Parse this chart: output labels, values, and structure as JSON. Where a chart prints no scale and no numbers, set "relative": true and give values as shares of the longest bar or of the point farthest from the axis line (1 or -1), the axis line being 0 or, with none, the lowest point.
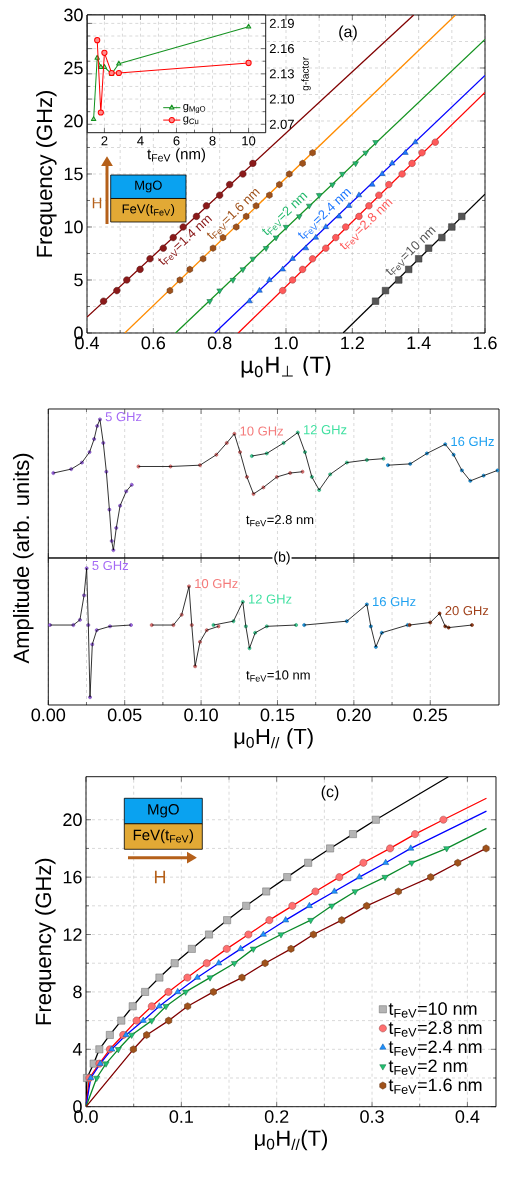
{
  "chart_data": [
    {
      "type": "scatter",
      "xlabel": "μ$_{0}$H$_{⊥}$ (T)",
      "ylabel": "Frequency (GHz)",
      "xlim": [
        0.4,
        1.6
      ],
      "ylim": [
        0,
        30
      ],
      "xticks": [
        0.4,
        0.6,
        0.8,
        {
          "value": 1.0,
          "label": "1.0"
        },
        1.2,
        1.4,
        1.6
      ],
      "yticks": [
        0,
        5,
        10,
        15,
        20,
        25,
        30
      ],
      "grid": true,
      "annotations": [
        "(a)",
        "MgO",
        "FeV(t$_{FeV}$)",
        "H"
      ],
      "series": [
        {
          "type": "line",
          "color": "#800000",
          "x": [
            0.4,
            1.385
          ],
          "values": [
            1.5,
            30
          ]
        },
        {
          "type": "line",
          "color": "#ff8c00",
          "x": [
            0.514,
            1.511
          ],
          "values": [
            0,
            30
          ]
        },
        {
          "type": "line",
          "color": "#13921f",
          "x": [
            0.667,
            1.6
          ],
          "values": [
            0,
            27.7
          ]
        },
        {
          "type": "line",
          "color": "#0000ff",
          "x": [
            0.785,
            1.6
          ],
          "values": [
            0,
            24.3
          ]
        },
        {
          "type": "line",
          "color": "#ff0000",
          "x": [
            0.856,
            1.6
          ],
          "values": [
            0,
            22.7
          ]
        },
        {
          "type": "line",
          "color": "#000000",
          "x": [
            1.172,
            1.6
          ],
          "values": [
            0,
            13.1
          ]
        },
        {
          "name": "t$_{FeV}$=1.4 nm",
          "color": "#8b1a1a",
          "marker": "circle",
          "x": [
            0.45,
            0.49,
            0.52,
            0.56,
            0.59,
            0.63,
            0.66,
            0.69,
            0.73,
            0.76,
            0.8,
            0.83,
            0.87,
            0.9
          ],
          "values": [
            3,
            4,
            5,
            6,
            7,
            8,
            9,
            10,
            11,
            12,
            13,
            14,
            15,
            16
          ]
        },
        {
          "name": "t$_{FeV}$=1.6 nm",
          "color": "#a0521b",
          "x": [
            0.65,
            0.68,
            0.71,
            0.75,
            0.78,
            0.81,
            0.85,
            0.88,
            0.91,
            0.95,
            0.98,
            1.01,
            1.05,
            1.08
          ],
          "values": [
            4,
            5,
            6,
            7,
            8,
            9,
            10,
            11,
            12,
            13,
            14,
            15,
            16,
            17
          ]
        },
        {
          "name": "t$_{FeV}$=2 nm",
          "color": "#22b86b",
          "marker": "triangle-down",
          "x": [
            0.77,
            0.8,
            0.84,
            0.87,
            0.9,
            0.94,
            0.97,
            1.0,
            1.04,
            1.07,
            1.1,
            1.14,
            1.17,
            1.21,
            1.24,
            1.27
          ],
          "values": [
            3,
            4,
            5,
            6,
            7,
            8,
            9,
            10,
            11,
            12,
            13,
            14,
            15,
            16,
            17,
            18
          ]
        },
        {
          "name": "t$_{FeV}$=2.4 nm",
          "color": "#1e78ff",
          "marker": "triangle",
          "x": [
            0.89,
            0.92,
            0.95,
            0.99,
            1.02,
            1.06,
            1.09,
            1.12,
            1.16,
            1.19,
            1.22,
            1.26,
            1.29,
            1.32,
            1.36,
            1.39
          ],
          "values": [
            3,
            4,
            5,
            6,
            7,
            8,
            9,
            10,
            11,
            12,
            13,
            14,
            15,
            16,
            17,
            18
          ]
        },
        {
          "name": "t$_{FeV}$=2.8 nm",
          "color": "#ff5a5a",
          "marker": "circle",
          "x": [
            0.99,
            1.02,
            1.05,
            1.08,
            1.12,
            1.15,
            1.18,
            1.22,
            1.25,
            1.28,
            1.31,
            1.35,
            1.38,
            1.41,
            1.45
          ],
          "values": [
            4,
            5,
            6,
            7,
            8,
            9,
            10,
            11,
            12,
            13,
            14,
            15,
            16,
            17,
            18
          ]
        },
        {
          "name": "t$_{FeV}$=10 nm",
          "color": "#555555",
          "marker": "square",
          "x": [
            1.27,
            1.3,
            1.34,
            1.37,
            1.4,
            1.43,
            1.47,
            1.5,
            1.53
          ],
          "values": [
            3,
            4,
            5,
            6,
            7,
            8,
            9,
            10,
            11
          ]
        }
      ]
    },
    {
      "type": "line",
      "xlabel": "t$_{FeV}$ (nm)",
      "ylabel": "g-factor",
      "xlim": [
        1.05,
        10.95
      ],
      "ylim": [
        2.06,
        2.2
      ],
      "xticks": [
        2,
        4,
        6,
        8,
        10
      ],
      "yticks": [
        2.07,
        {
          "value": 2.1,
          "label": "2.10"
        },
        2.13,
        2.16,
        2.19
      ],
      "grid": true,
      "legend": "bottom",
      "series": [
        {
          "name": "g$_{MgO}$",
          "color": "#13921f",
          "marker": "triangle",
          "x": [
            1.4,
            1.6,
            1.8,
            2,
            2.4,
            2.8,
            10
          ],
          "values": [
            2.076,
            2.149,
            2.138,
            2.138,
            2.13,
            2.142,
            2.186
          ]
        },
        {
          "name": "g$_{Cu}$",
          "color": "#ff0000",
          "marker": "circle",
          "x": [
            1.6,
            1.8,
            2,
            2.4,
            2.8,
            10
          ],
          "values": [
            2.17,
            2.084,
            2.155,
            2.131,
            2.131,
            2.143
          ]
        }
      ]
    },
    {
      "type": "scatter",
      "relative": true,
      "xlim": [
        0,
        0.295
      ],
      "xticks": [
        0,
        0.05,
        0.1,
        0.15,
        0.2,
        0.25
      ],
      "tick_labels": false,
      "grid": "x",
      "ylabel": "Amplitude (arb. units)",
      "annotations": [
        "t$_{FeV}$=2.8 nm"
      ],
      "series": [
        {
          "name": "5 GHz",
          "color": "#a469f5",
          "x": [
            0.0033,
            0.015,
            0.022,
            0.027,
            0.03,
            0.032,
            0.0338,
            0.036,
            0.038,
            0.04,
            0.0415,
            0.0426,
            0.0445,
            0.047,
            0.051,
            0.0546
          ],
          "values": [
            0.59,
            0.62,
            0.67,
            0.75,
            0.85,
            0.95,
            1.0,
            0.82,
            0.6,
            0.31,
            0.07,
            0,
            0.17,
            0.34,
            0.45,
            0.5
          ]
        },
        {
          "type": "line",
          "color": "#000000",
          "x": [
            0.0033,
            0.015,
            0.022,
            0.027,
            0.03,
            0.032,
            0.0338,
            0.036,
            0.038,
            0.04,
            0.0415,
            0.0426,
            0.0445,
            0.047,
            0.051,
            0.0546
          ],
          "values": [
            0.59,
            0.62,
            0.67,
            0.75,
            0.85,
            0.95,
            1.0,
            0.82,
            0.6,
            0.31,
            0.07,
            0,
            0.17,
            0.34,
            0.45,
            0.5
          ]
        },
        {
          "name": "10 GHz",
          "color": "#f47a7a",
          "x": [
            0.059,
            0.08,
            0.0993,
            0.11,
            0.1168,
            0.1218,
            0.1255,
            0.13,
            0.1343,
            0.1408,
            0.1496,
            0.1583,
            0.1664
          ],
          "values": [
            0.64,
            0.64,
            0.65,
            0.73,
            0.82,
            0.89,
            0.75,
            0.56,
            0.43,
            0.48,
            0.56,
            0.59,
            0.6
          ]
        },
        {
          "type": "line",
          "color": "#000000",
          "x": [
            0.059,
            0.08,
            0.0993,
            0.11,
            0.1168,
            0.1218,
            0.1255,
            0.13,
            0.1343,
            0.1408,
            0.1496,
            0.1583,
            0.1664
          ],
          "values": [
            0.64,
            0.64,
            0.65,
            0.73,
            0.82,
            0.89,
            0.75,
            0.56,
            0.43,
            0.48,
            0.56,
            0.59,
            0.6
          ]
        },
        {
          "name": "12 GHz",
          "color": "#3fe0a0",
          "x": [
            0.1332,
            0.143,
            0.154,
            0.1633,
            0.168,
            0.1725,
            0.1773,
            0.1845,
            0.1954,
            0.2085,
            0.2194
          ],
          "values": [
            0.72,
            0.74,
            0.82,
            0.9,
            0.75,
            0.56,
            0.46,
            0.58,
            0.67,
            0.69,
            0.7
          ]
        },
        {
          "type": "line",
          "color": "#000000",
          "x": [
            0.1332,
            0.143,
            0.154,
            0.1633,
            0.168,
            0.1725,
            0.1773,
            0.1845,
            0.1954,
            0.2085,
            0.2194
          ],
          "values": [
            0.72,
            0.74,
            0.82,
            0.9,
            0.75,
            0.56,
            0.46,
            0.58,
            0.67,
            0.69,
            0.7
          ]
        },
        {
          "name": "16 GHz",
          "color": "#1ea0f0",
          "x": [
            0.2223,
            0.2369,
            0.2478,
            0.2598,
            0.2653,
            0.2707,
            0.2762,
            0.2849,
            0.294
          ],
          "values": [
            0.65,
            0.66,
            0.74,
            0.81,
            0.73,
            0.61,
            0.53,
            0.57,
            0.61
          ]
        },
        {
          "type": "line",
          "color": "#000000",
          "x": [
            0.2223,
            0.2369,
            0.2478,
            0.2598,
            0.2653,
            0.2707,
            0.2762,
            0.2849,
            0.294
          ],
          "values": [
            0.65,
            0.66,
            0.74,
            0.81,
            0.73,
            0.61,
            0.53,
            0.57,
            0.61
          ]
        }
      ]
    },
    {
      "type": "scatter",
      "relative": true,
      "xlim": [
        0,
        0.295
      ],
      "xticks": [
        {
          "value": 0,
          "label": "0.00"
        },
        {
          "value": 0.05,
          "label": "0.05"
        },
        {
          "value": 0.1,
          "label": "0.10"
        },
        {
          "value": 0.15,
          "label": "0.15"
        },
        {
          "value": 0.2,
          "label": "0.20"
        },
        {
          "value": 0.25,
          "label": "0.25"
        }
      ],
      "tick_labels": "x",
      "grid": "x",
      "xlabel": "μ$_{0}$H$_{//}$ (T)",
      "annotations": [
        "(b)",
        "t$_{FeV}$=10 nm"
      ],
      "series": [
        {
          "name": "5 GHz",
          "color": "#a469f5",
          "x": [
            0.0011,
            0.0164,
            0.0207,
            0.0234,
            0.0251,
            0.0262,
            0.0273,
            0.0288,
            0.0317,
            0.0404,
            0.0541
          ],
          "values": [
            0.56,
            0.56,
            0.6,
            0.79,
            1.0,
            0.56,
            0,
            0.41,
            0.52,
            0.55,
            0.56
          ]
        },
        {
          "type": "line",
          "color": "#000000",
          "x": [
            0.0011,
            0.0164,
            0.0207,
            0.0234,
            0.0251,
            0.0262,
            0.0273,
            0.0288,
            0.0317,
            0.0404,
            0.0541
          ],
          "values": [
            0.56,
            0.56,
            0.6,
            0.79,
            1.0,
            0.56,
            0,
            0.41,
            0.52,
            0.55,
            0.56
          ]
        },
        {
          "name": "10 GHz",
          "color": "#f47a7a",
          "x": [
            0.0677,
            0.0819,
            0.0873,
            0.0921,
            0.0939,
            0.0961,
            0.0993,
            0.1037,
            0.1114
          ],
          "values": [
            0.56,
            0.56,
            0.64,
            0.86,
            0.56,
            0.24,
            0.43,
            0.52,
            0.55
          ]
        },
        {
          "type": "line",
          "color": "#000000",
          "x": [
            0.0677,
            0.0819,
            0.0873,
            0.0921,
            0.0939,
            0.0961,
            0.0993,
            0.1037,
            0.1114
          ],
          "values": [
            0.56,
            0.56,
            0.64,
            0.86,
            0.56,
            0.24,
            0.43,
            0.52,
            0.55
          ]
        },
        {
          "name": "12 GHz",
          "color": "#3fe0a0",
          "x": [
            0.1081,
            0.1212,
            0.1273,
            0.1293,
            0.1317,
            0.1354,
            0.143,
            0.1622
          ],
          "values": [
            0.56,
            0.59,
            0.74,
            0.55,
            0.38,
            0.5,
            0.55,
            0.56
          ]
        },
        {
          "type": "line",
          "color": "#000000",
          "x": [
            0.1081,
            0.1212,
            0.1273,
            0.1293,
            0.1317,
            0.1354,
            0.143,
            0.1622
          ],
          "values": [
            0.56,
            0.59,
            0.74,
            0.55,
            0.38,
            0.5,
            0.55,
            0.56
          ]
        },
        {
          "name": "16 GHz",
          "color": "#1ea0f0",
          "x": [
            0.1675,
            0.1954,
            0.2085,
            0.2111,
            0.2144,
            0.2183,
            0.2352
          ],
          "values": [
            0.56,
            0.59,
            0.72,
            0.55,
            0.39,
            0.5,
            0.56
          ]
        },
        {
          "type": "line",
          "color": "#000000",
          "x": [
            0.1675,
            0.1954,
            0.2085,
            0.2111,
            0.2144,
            0.2183,
            0.2352
          ],
          "values": [
            0.56,
            0.59,
            0.72,
            0.55,
            0.39,
            0.5,
            0.56
          ]
        },
        {
          "name": "20 GHz",
          "color": "#a0401a",
          "x": [
            0.2365,
            0.25,
            0.2561,
            0.2598,
            0.262,
            0.2773
          ],
          "values": [
            0.56,
            0.58,
            0.65,
            0.55,
            0.54,
            0.56
          ]
        },
        {
          "type": "line",
          "color": "#000000",
          "x": [
            0.2365,
            0.25,
            0.2561,
            0.2598,
            0.262,
            0.2773
          ],
          "values": [
            0.56,
            0.58,
            0.65,
            0.55,
            0.54,
            0.56
          ]
        }
      ]
    },
    {
      "type": "scatter",
      "xlabel": "μ$_{0}$H$_{//}$(T)",
      "ylabel": "Frequency (GHz)",
      "xlim": [
        0,
        0.43
      ],
      "ylim": [
        0,
        23
      ],
      "xticks": [
        {
          "value": 0,
          "label": "0.0"
        },
        0.1,
        0.2,
        0.3,
        0.4
      ],
      "yticks": [
        0,
        4,
        8,
        12,
        16,
        20
      ],
      "grid": true,
      "legend": "bottom right",
      "annotations": [
        "(c)",
        "MgO",
        "FeV(t$_{FeV}$)",
        "H"
      ],
      "series": [
        {
          "type": "line",
          "color": "#000000",
          "x": [
            0,
            0.001,
            0.008,
            0.014,
            0.025,
            0.037,
            0.049,
            0.062,
            0.077,
            0.093,
            0.111,
            0.129,
            0.148,
            0.168,
            0.189,
            0.211,
            0.233,
            0.256,
            0.28,
            0.304,
            0.38
          ],
          "values": [
            0,
            2,
            3,
            4,
            5,
            6,
            7,
            8,
            9,
            10,
            11,
            12,
            13,
            14,
            15,
            16,
            17,
            18,
            19,
            20,
            23
          ]
        },
        {
          "type": "line",
          "color": "#ff0000",
          "x": [
            0,
            0.0035,
            0.014,
            0.025,
            0.039,
            0.053,
            0.069,
            0.0864,
            0.1063,
            0.1266,
            0.1476,
            0.1703,
            0.1923,
            0.2164,
            0.2406,
            0.2657,
            0.2909,
            0.3189,
            0.3451,
            0.3748,
            0.42
          ],
          "values": [
            0,
            2,
            3,
            4,
            5,
            6,
            7,
            8,
            9,
            10,
            11,
            12,
            13,
            14,
            15,
            16,
            17,
            18,
            19,
            20,
            21.5
          ]
        },
        {
          "type": "line",
          "color": "#0000ff",
          "x": [
            0,
            0.005,
            0.015,
            0.027,
            0.042,
            0.0601,
            0.0769,
            0.0962,
            0.1168,
            0.1392,
            0.1622,
            0.186,
            0.2094,
            0.2343,
            0.2605,
            0.2867,
            0.3143,
            0.3406,
            0.42
          ],
          "values": [
            0,
            2,
            3,
            4,
            5,
            6,
            7,
            8,
            9,
            10,
            11,
            12,
            13,
            14,
            15,
            16,
            17,
            18,
            20.6
          ]
        },
        {
          "type": "line",
          "color": "#0a8a2a",
          "x": [
            0,
            0.0112,
            0.021,
            0.0339,
            0.0479,
            0.0689,
            0.0839,
            0.1045,
            0.1301,
            0.1556,
            0.1755,
            0.2045,
            0.2357,
            0.2577,
            0.2822,
            0.3136,
            0.3416,
            0.3783,
            0.42
          ],
          "values": [
            0,
            2,
            3,
            4,
            5,
            6,
            7,
            8,
            9,
            10,
            11,
            12,
            13,
            14,
            15,
            16,
            17,
            18,
            19.4
          ]
        },
        {
          "type": "line",
          "color": "#800000",
          "x": [
            0,
            0.0497,
            0.0636,
            0.0867,
            0.1066,
            0.1336,
            0.1636,
            0.1878,
            0.215,
            0.2385,
            0.2682,
            0.2944,
            0.3276,
            0.3615,
            0.3899,
            0.4196
          ],
          "values": [
            0,
            4,
            5,
            6,
            7,
            8,
            9,
            10,
            11,
            12,
            13,
            14,
            15,
            16,
            17,
            18
          ]
        },
        {
          "name": "t$_{FeV}$=10 nm",
          "color": "#b4b4b4",
          "marker": "square",
          "x": [
            0.001,
            0.008,
            0.014,
            0.025,
            0.037,
            0.049,
            0.062,
            0.077,
            0.093,
            0.111,
            0.129,
            0.148,
            0.168,
            0.189,
            0.211,
            0.233,
            0.256,
            0.28,
            0.304
          ],
          "values": [
            2,
            3,
            4,
            5,
            6,
            7,
            8,
            9,
            10,
            11,
            12,
            13,
            14,
            15,
            16,
            17,
            18,
            19,
            20
          ]
        },
        {
          "name": "t$_{FeV}$=2.8 nm",
          "color": "#ff7070",
          "marker": "circle",
          "x": [
            0.0035,
            0.014,
            0.025,
            0.039,
            0.053,
            0.069,
            0.0864,
            0.1063,
            0.1266,
            0.1476,
            0.1703,
            0.1923,
            0.2164,
            0.2406,
            0.2657,
            0.2909,
            0.3189,
            0.3451,
            0.3748
          ],
          "values": [
            2,
            3,
            4,
            5,
            6,
            7,
            8,
            9,
            10,
            11,
            12,
            13,
            14,
            15,
            16,
            17,
            18,
            19,
            20
          ]
        },
        {
          "name": "t$_{FeV}$=2.4 nm",
          "color": "#1e90ff",
          "marker": "triangle",
          "x": [
            0.005,
            0.015,
            0.027,
            0.042,
            0.0601,
            0.0769,
            0.0962,
            0.1168,
            0.1392,
            0.1622,
            0.186,
            0.2094,
            0.2343,
            0.2605,
            0.2867,
            0.3143,
            0.3406
          ],
          "values": [
            2,
            3,
            4,
            5,
            6,
            7,
            8,
            9,
            10,
            11,
            12,
            13,
            14,
            15,
            16,
            17,
            18
          ]
        },
        {
          "name": "t$_{FeV}$=2 nm",
          "color": "#22c070",
          "marker": "triangle-down",
          "x": [
            0.0112,
            0.021,
            0.0339,
            0.0479,
            0.0689,
            0.0839,
            0.1045,
            0.1301,
            0.1556,
            0.1755,
            0.2045,
            0.2357,
            0.2577,
            0.2822,
            0.3136,
            0.3416,
            0.3783
          ],
          "values": [
            2,
            3,
            4,
            5,
            6,
            7,
            8,
            9,
            10,
            11,
            12,
            13,
            14,
            15,
            16,
            17,
            18
          ]
        },
        {
          "name": "t$_{FeV}$=1.6 nm",
          "color": "#a0521b",
          "x": [
            0.0497,
            0.0636,
            0.0867,
            0.1066,
            0.1336,
            0.1636,
            0.1878,
            0.215,
            0.2385,
            0.2682,
            0.2944,
            0.3276,
            0.3615,
            0.3899,
            0.4196
          ],
          "values": [
            4,
            5,
            6,
            7,
            8,
            9,
            10,
            11,
            12,
            13,
            14,
            15,
            16,
            17,
            18
          ]
        }
      ]
    }
  ]
}
